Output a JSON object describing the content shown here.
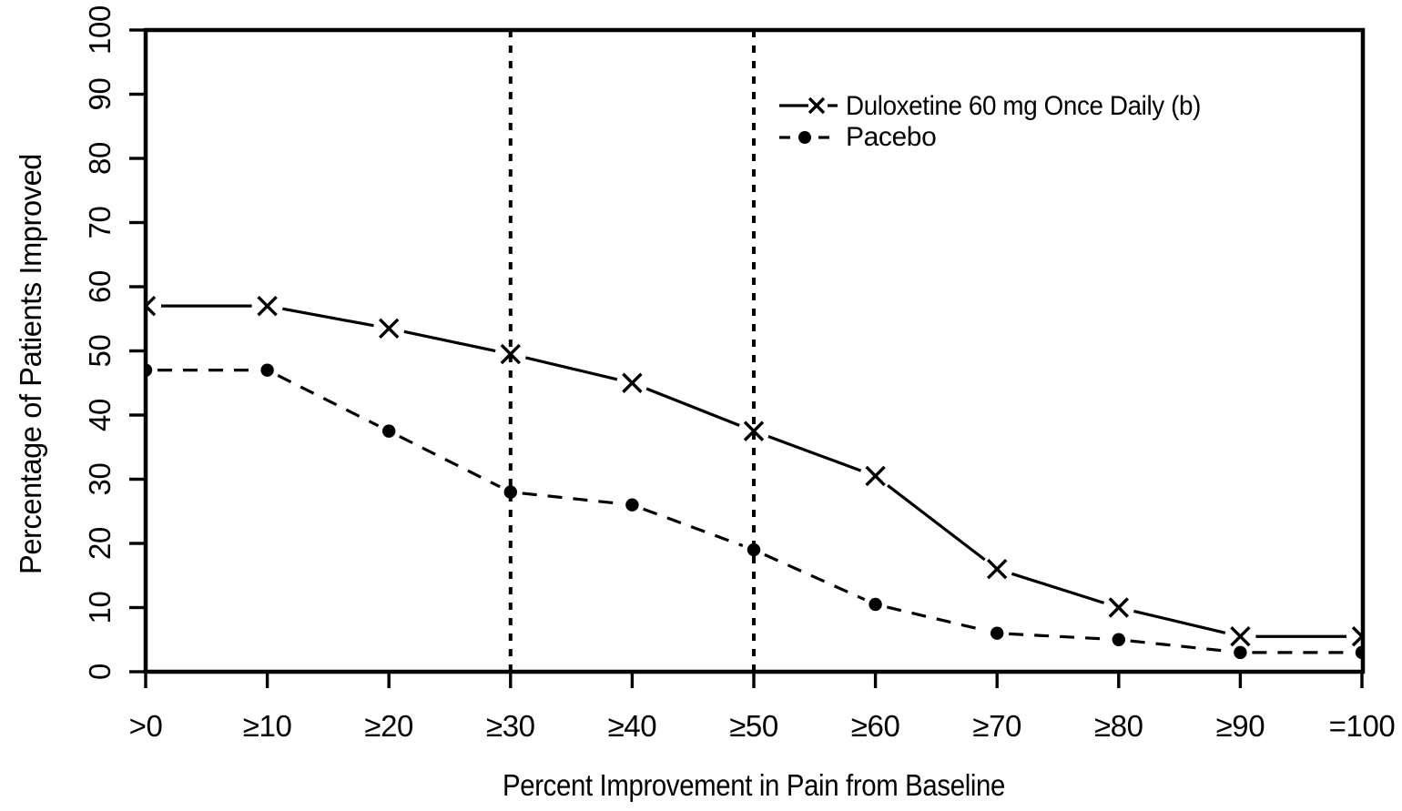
{
  "figure": {
    "background": "#ffffff",
    "foreground": "#000000"
  },
  "chart_data": {
    "type": "line",
    "title": "",
    "xlabel": "Percent Improvement in Pain from Baseline",
    "ylabel": "Percentage of Patients Improved",
    "categories": [
      ">0",
      "≥10",
      "≥20",
      "≥30",
      "≥40",
      "≥50",
      "≥60",
      "≥70",
      "≥80",
      "≥90",
      "=100"
    ],
    "y_ticks": [
      0,
      10,
      20,
      30,
      40,
      50,
      60,
      70,
      80,
      90,
      100
    ],
    "ylim": [
      0,
      100
    ],
    "grid": false,
    "legend": {
      "position": "inside-top-right"
    },
    "reference_lines": [
      {
        "style": "vertical-dotted",
        "at_category": "≥30",
        "index": 3
      },
      {
        "style": "vertical-dotted",
        "at_category": "≥50",
        "index": 5
      }
    ],
    "series": [
      {
        "name": "Duloxetine 60 mg Once Daily (b)",
        "marker": "x",
        "line": "solid",
        "values": [
          57,
          57,
          53.5,
          49.5,
          45,
          37.5,
          30.5,
          16,
          10,
          5.5,
          5.5
        ]
      },
      {
        "name": "Pacebo",
        "marker": "filled-circle",
        "line": "dashed",
        "values": [
          47,
          47,
          37.5,
          28,
          26,
          19,
          10.5,
          6,
          5,
          3,
          3
        ]
      }
    ]
  }
}
